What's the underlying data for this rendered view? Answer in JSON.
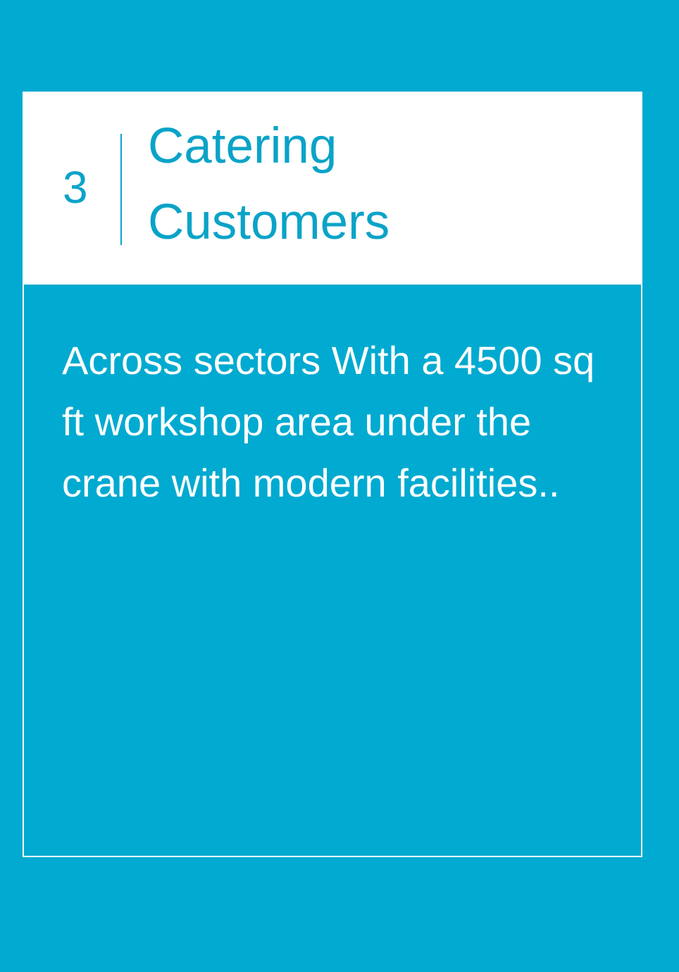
{
  "card": {
    "number": "3",
    "title": "Catering\nCustomers",
    "description": "Across sectors With a 4500 sq ft workshop area under the crane with modern facilities.."
  },
  "colors": {
    "background": "#00aad0",
    "header_background": "#ffffff",
    "accent": "#0aa3c8",
    "body_text": "#ffffff"
  }
}
